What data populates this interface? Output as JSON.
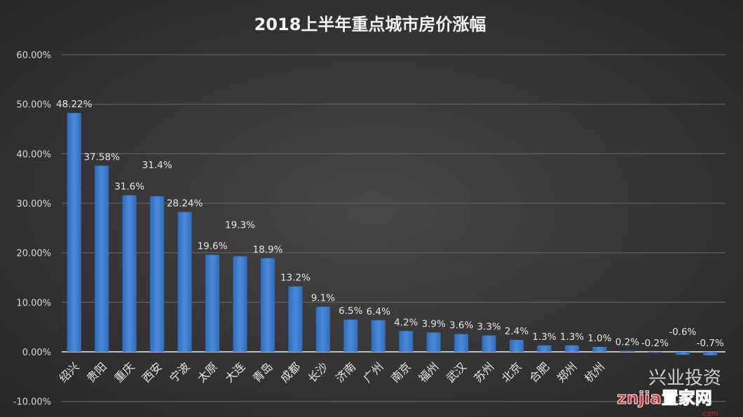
{
  "chart_data": {
    "type": "bar",
    "title": "2018上半年重点城市房价涨幅",
    "categories": [
      "绍兴",
      "贵阳",
      "重庆",
      "西安",
      "宁波",
      "太原",
      "大连",
      "青岛",
      "成都",
      "长沙",
      "济南",
      "广州",
      "南京",
      "福州",
      "武汉",
      "苏州",
      "北京",
      "合肥",
      "郑州",
      "杭州",
      "",
      "",
      "",
      ""
    ],
    "values": [
      48.22,
      37.58,
      31.6,
      31.4,
      28.24,
      19.6,
      19.3,
      18.9,
      13.2,
      9.1,
      6.5,
      6.4,
      4.2,
      3.9,
      3.6,
      3.3,
      2.4,
      1.3,
      1.3,
      1.0,
      0.2,
      -0.2,
      -0.6,
      -0.7
    ],
    "data_labels": [
      "48.22%",
      "37.58%",
      "31.6%",
      "31.4%",
      "28.24%",
      "19.6%",
      "19.3%",
      "18.9%",
      "13.2%",
      "9.1%",
      "6.5%",
      "6.4%",
      "4.2%",
      "3.9%",
      "3.6%",
      "3.3%",
      "2.4%",
      "1.3%",
      "1.3%",
      "1.0%",
      "0.2%",
      "-0.2%",
      "-0.6%",
      "-0.7%"
    ],
    "ylim": [
      -10,
      60
    ],
    "yticks": [
      "-10.00%",
      "0.00%",
      "10.00%",
      "20.00%",
      "30.00%",
      "40.00%",
      "50.00%",
      "60.00%"
    ],
    "grid": true,
    "bar_color": "#3f7fd0",
    "xlabel": "",
    "ylabel": ""
  },
  "watermark": {
    "text": "znjia置家网",
    "sub": ".com",
    "overlay": "兴业投资"
  }
}
